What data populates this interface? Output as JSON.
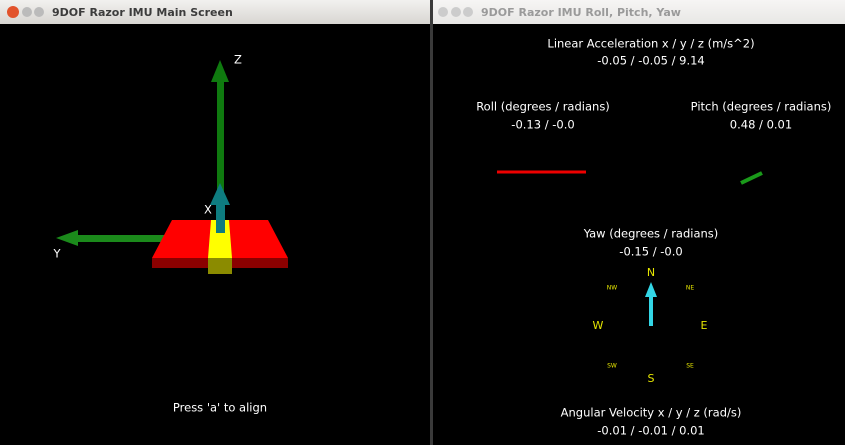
{
  "windows": [
    {
      "title": "9DOF Razor IMU Main Screen",
      "axes": {
        "z": "Z",
        "x": "X",
        "y": "Y"
      },
      "hint": "Press 'a' to align"
    },
    {
      "title": "9DOF Razor IMU Roll, Pitch, Yaw",
      "linear_acceleration": {
        "label": "Linear Acceleration x / y / z (m/s^2)",
        "value": "-0.05 / -0.05 / 9.14"
      },
      "roll": {
        "label": "Roll (degrees / radians)",
        "value": "-0.13 / -0.0"
      },
      "pitch": {
        "label": "Pitch (degrees / radians)",
        "value": "0.48 / 0.01"
      },
      "yaw": {
        "label": "Yaw (degrees / radians)",
        "value": "-0.15 / -0.0"
      },
      "compass": {
        "n": "N",
        "ne": "NE",
        "e": "E",
        "se": "SE",
        "s": "S",
        "sw": "SW",
        "w": "W",
        "nw": "NW"
      },
      "angular_velocity": {
        "label": "Angular Velocity x / y / z (rad/s)",
        "value": "-0.01 / -0.01 / 0.01"
      }
    }
  ]
}
